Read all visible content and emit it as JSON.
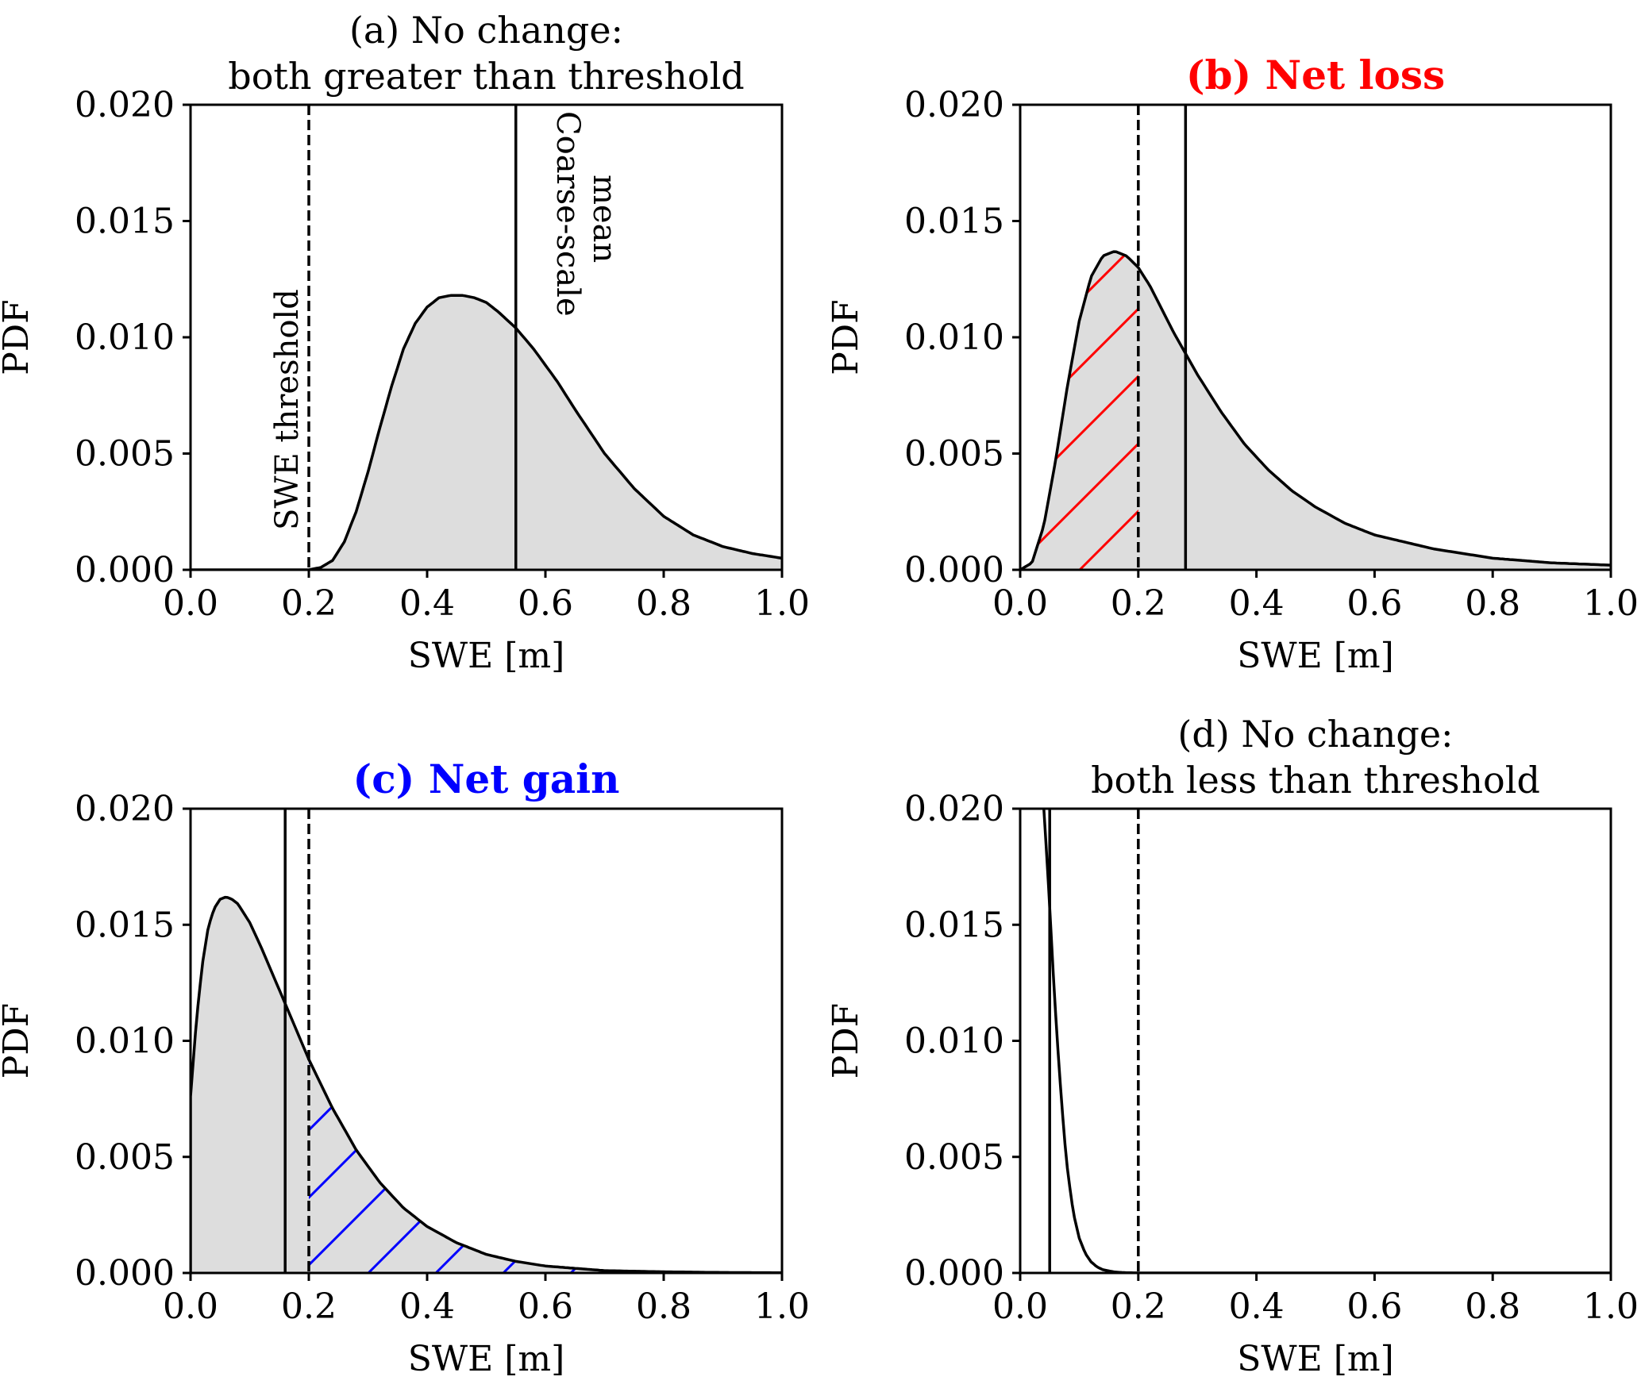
{
  "chart_data": [
    {
      "id": "a",
      "type": "area",
      "title": [
        "(a) No change:",
        "both greater than threshold"
      ],
      "title_color": "#000000",
      "title_bold": false,
      "xlabel": "SWE [m]",
      "ylabel": "PDF",
      "xlim": [
        0.0,
        1.0
      ],
      "ylim": [
        0.0,
        0.02
      ],
      "xticks": [
        "0.0",
        "0.2",
        "0.4",
        "0.6",
        "0.8",
        "1.0"
      ],
      "yticks": [
        "0.000",
        "0.005",
        "0.010",
        "0.015",
        "0.020"
      ],
      "threshold": 0.2,
      "coarse_mean": 0.55,
      "annotations": [
        "SWE threshold",
        "Coarse-scale\nmean"
      ],
      "hatch": null,
      "series": [
        {
          "x": [
            0.2,
            0.22,
            0.24,
            0.26,
            0.28,
            0.3,
            0.32,
            0.34,
            0.36,
            0.38,
            0.4,
            0.42,
            0.44,
            0.46,
            0.48,
            0.5,
            0.52,
            0.55,
            0.58,
            0.6,
            0.62,
            0.65,
            0.7,
            0.75,
            0.8,
            0.85,
            0.9,
            0.95,
            1.0
          ],
          "y": [
            0.0,
            0.0001,
            0.0004,
            0.0012,
            0.0025,
            0.0042,
            0.0061,
            0.0079,
            0.0095,
            0.0106,
            0.0113,
            0.0117,
            0.0118,
            0.0118,
            0.0117,
            0.0115,
            0.0111,
            0.0104,
            0.0095,
            0.0088,
            0.0081,
            0.0069,
            0.005,
            0.0035,
            0.0023,
            0.0015,
            0.001,
            0.0007,
            0.0005
          ]
        }
      ]
    },
    {
      "id": "b",
      "type": "area",
      "title": [
        "(b) Net loss"
      ],
      "title_color": "#ff0000",
      "title_bold": true,
      "xlabel": "SWE [m]",
      "ylabel": "PDF",
      "xlim": [
        0.0,
        1.0
      ],
      "ylim": [
        0.0,
        0.02
      ],
      "xticks": [
        "0.0",
        "0.2",
        "0.4",
        "0.6",
        "0.8",
        "1.0"
      ],
      "yticks": [
        "0.000",
        "0.005",
        "0.010",
        "0.015",
        "0.020"
      ],
      "threshold": 0.2,
      "coarse_mean": 0.28,
      "annotations": [],
      "hatch": {
        "from": 0.0,
        "to": 0.2,
        "color": "#ff0000"
      },
      "series": [
        {
          "x": [
            0.0,
            0.02,
            0.04,
            0.06,
            0.08,
            0.1,
            0.12,
            0.14,
            0.16,
            0.18,
            0.2,
            0.22,
            0.24,
            0.26,
            0.28,
            0.3,
            0.34,
            0.38,
            0.42,
            0.46,
            0.5,
            0.55,
            0.6,
            0.7,
            0.8,
            0.9,
            1.0
          ],
          "y": [
            0.0,
            0.0003,
            0.0019,
            0.0047,
            0.0079,
            0.0107,
            0.0126,
            0.0135,
            0.0137,
            0.0135,
            0.013,
            0.0122,
            0.0112,
            0.0102,
            0.0093,
            0.0084,
            0.0068,
            0.0054,
            0.0043,
            0.0034,
            0.0027,
            0.002,
            0.0015,
            0.0009,
            0.0005,
            0.0003,
            0.0002
          ]
        }
      ]
    },
    {
      "id": "c",
      "type": "area",
      "title": [
        "(c) Net gain"
      ],
      "title_color": "#0000ff",
      "title_bold": true,
      "xlabel": "SWE [m]",
      "ylabel": "PDF",
      "xlim": [
        0.0,
        1.0
      ],
      "ylim": [
        0.0,
        0.02
      ],
      "xticks": [
        "0.0",
        "0.2",
        "0.4",
        "0.6",
        "0.8",
        "1.0"
      ],
      "yticks": [
        "0.000",
        "0.005",
        "0.010",
        "0.015",
        "0.020"
      ],
      "threshold": 0.2,
      "coarse_mean": 0.16,
      "annotations": [],
      "hatch": {
        "from": 0.2,
        "to": 1.0,
        "color": "#0000ff"
      },
      "series": [
        {
          "x": [
            0.0,
            0.01,
            0.02,
            0.03,
            0.04,
            0.05,
            0.06,
            0.07,
            0.08,
            0.09,
            0.1,
            0.12,
            0.14,
            0.16,
            0.18,
            0.2,
            0.24,
            0.28,
            0.32,
            0.36,
            0.4,
            0.45,
            0.5,
            0.55,
            0.6,
            0.7,
            0.8,
            0.9,
            1.0
          ],
          "y": [
            0.0076,
            0.0109,
            0.0133,
            0.0149,
            0.0157,
            0.0161,
            0.0162,
            0.0161,
            0.0159,
            0.0155,
            0.0151,
            0.014,
            0.0128,
            0.0116,
            0.0104,
            0.0092,
            0.0071,
            0.0053,
            0.0039,
            0.0028,
            0.002,
            0.0013,
            0.0008,
            0.0005,
            0.0003,
            0.0001,
            5e-05,
            2e-05,
            1e-05
          ]
        }
      ]
    },
    {
      "id": "d",
      "type": "line",
      "title": [
        "(d) No change:",
        "both less than threshold"
      ],
      "title_color": "#000000",
      "title_bold": false,
      "xlabel": "SWE [m]",
      "ylabel": "PDF",
      "xlim": [
        0.0,
        1.0
      ],
      "ylim": [
        0.0,
        0.02
      ],
      "xticks": [
        "0.0",
        "0.2",
        "0.4",
        "0.6",
        "0.8",
        "1.0"
      ],
      "yticks": [
        "0.000",
        "0.005",
        "0.010",
        "0.015",
        "0.020"
      ],
      "threshold": 0.2,
      "coarse_mean": 0.05,
      "annotations": [],
      "hatch": null,
      "series": [
        {
          "x": [
            0.04,
            0.045,
            0.05,
            0.055,
            0.06,
            0.065,
            0.07,
            0.075,
            0.08,
            0.085,
            0.09,
            0.1,
            0.11,
            0.12,
            0.13,
            0.14,
            0.16,
            0.18,
            0.2,
            0.3,
            0.5,
            1.0
          ],
          "y": [
            0.02,
            0.018,
            0.0158,
            0.0133,
            0.0112,
            0.0092,
            0.0074,
            0.0058,
            0.0045,
            0.0035,
            0.0026,
            0.0015,
            0.00085,
            0.00048,
            0.00026,
            0.00014,
            4e-05,
            1e-05,
            0.0,
            0.0,
            0.0,
            0.0
          ]
        }
      ]
    }
  ]
}
